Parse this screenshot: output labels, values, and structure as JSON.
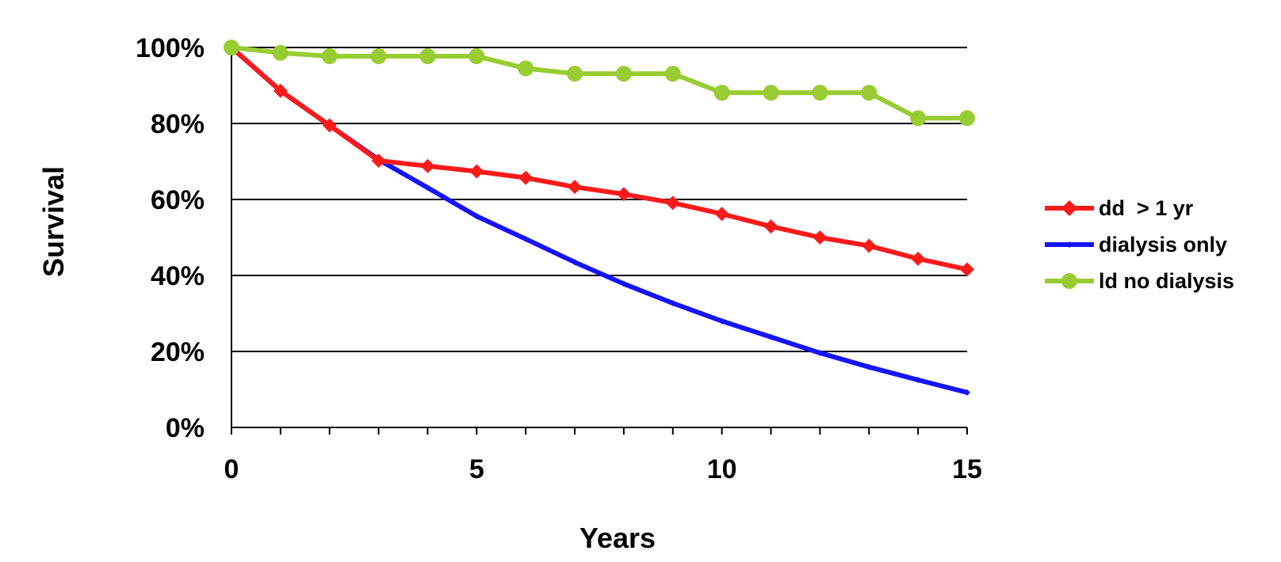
{
  "chart_data": {
    "type": "line",
    "title": "",
    "xlabel": "Years",
    "ylabel": "Survival",
    "xlim": [
      0,
      15
    ],
    "ylim": [
      0,
      100
    ],
    "x": [
      0,
      1,
      2,
      3,
      4,
      5,
      6,
      7,
      8,
      9,
      10,
      11,
      12,
      13,
      14,
      15
    ],
    "x_ticks": [
      0,
      5,
      10,
      15
    ],
    "x_tick_labels": [
      "0",
      "5",
      "10",
      "15"
    ],
    "y_ticks": [
      0,
      20,
      40,
      60,
      80,
      100
    ],
    "y_tick_labels": [
      "0%",
      "20%",
      "40%",
      "60%",
      "80%",
      "100%"
    ],
    "grid": "horizontal",
    "legend_position": "right",
    "series": [
      {
        "name": "dd  > 1 yr",
        "color": "#ff1a1a",
        "marker": "diamond",
        "values": [
          100,
          88.6,
          79.5,
          70.2,
          68.8,
          67.4,
          65.7,
          63.3,
          61.4,
          59.1,
          56.2,
          52.9,
          50.0,
          47.8,
          44.4,
          41.6
        ]
      },
      {
        "name": "dialysis only",
        "color": "#1414ff",
        "marker": "small-diamond",
        "values": [
          100,
          88.6,
          79.5,
          70.5,
          63.1,
          55.6,
          49.6,
          43.5,
          37.8,
          32.7,
          28.0,
          23.8,
          19.6,
          15.9,
          12.5,
          9.2
        ]
      },
      {
        "name": "ld no dialysis",
        "color": "#99cc33",
        "marker": "circle",
        "values": [
          100,
          98.6,
          97.7,
          97.7,
          97.7,
          97.7,
          94.5,
          93.1,
          93.1,
          93.1,
          88.1,
          88.1,
          88.1,
          88.1,
          81.4,
          81.4
        ]
      }
    ]
  }
}
